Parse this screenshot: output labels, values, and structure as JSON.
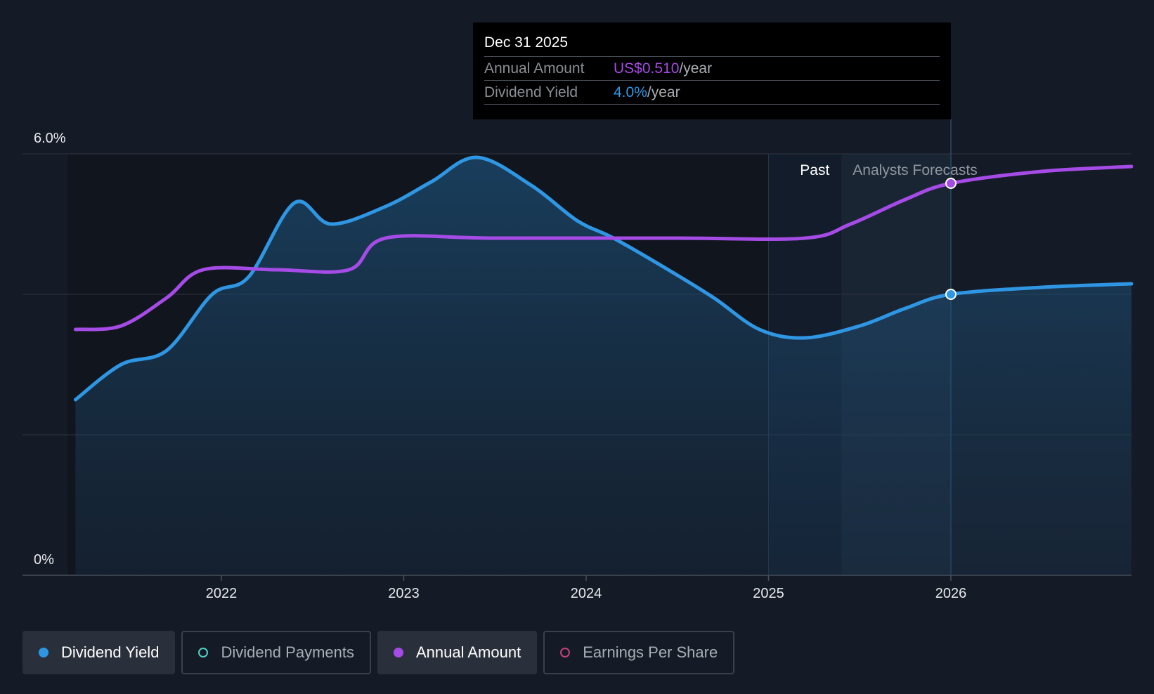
{
  "chart_data": {
    "type": "line",
    "x_axis": {
      "ticks": [
        "2022",
        "2023",
        "2024",
        "2025",
        "2026"
      ],
      "range": [
        2021.0,
        2027.0
      ]
    },
    "y_axis": {
      "tick_labels": [
        "6.0%",
        "0%"
      ],
      "range": [
        0,
        6
      ],
      "grid": true,
      "gridlines": [
        0,
        2,
        4,
        6
      ]
    },
    "regions": {
      "past_label": "Past",
      "forecast_label": "Analysts Forecasts",
      "forecast_start": 2025.4,
      "highlight_end": 2026.0
    },
    "series": [
      {
        "name": "Dividend Yield",
        "color": "#2f96e3",
        "area": true,
        "y_unit": "%",
        "points": [
          [
            2021.2,
            2.5
          ],
          [
            2021.45,
            3.0
          ],
          [
            2021.7,
            3.2
          ],
          [
            2021.95,
            4.0
          ],
          [
            2022.15,
            4.25
          ],
          [
            2022.4,
            5.3
          ],
          [
            2022.6,
            5.0
          ],
          [
            2022.9,
            5.25
          ],
          [
            2023.15,
            5.6
          ],
          [
            2023.4,
            5.95
          ],
          [
            2023.7,
            5.55
          ],
          [
            2023.95,
            5.05
          ],
          [
            2024.15,
            4.8
          ],
          [
            2024.45,
            4.35
          ],
          [
            2024.7,
            3.95
          ],
          [
            2024.95,
            3.5
          ],
          [
            2025.2,
            3.38
          ],
          [
            2025.5,
            3.55
          ],
          [
            2025.75,
            3.8
          ],
          [
            2026.0,
            4.0
          ],
          [
            2026.5,
            4.1
          ],
          [
            2026.99,
            4.15
          ]
        ]
      },
      {
        "name": "Annual Amount",
        "color": "#a54be6",
        "area": false,
        "note_scale": "plotted on same chart; y position corresponds to yield scale",
        "points": [
          [
            2021.2,
            3.5
          ],
          [
            2021.45,
            3.55
          ],
          [
            2021.7,
            3.95
          ],
          [
            2021.9,
            4.35
          ],
          [
            2022.3,
            4.35
          ],
          [
            2022.7,
            4.35
          ],
          [
            2022.9,
            4.8
          ],
          [
            2023.5,
            4.8
          ],
          [
            2024.5,
            4.8
          ],
          [
            2025.2,
            4.8
          ],
          [
            2025.45,
            5.0
          ],
          [
            2025.75,
            5.35
          ],
          [
            2026.0,
            5.58
          ],
          [
            2026.5,
            5.75
          ],
          [
            2026.99,
            5.82
          ]
        ]
      }
    ],
    "highlight": {
      "x": 2026.0,
      "date": "Dec 31 2025"
    }
  },
  "tooltip": {
    "date": "Dec 31 2025",
    "rows": [
      {
        "label": "Annual Amount",
        "value": "US$0.510",
        "unit": "/year",
        "color": "#a54be6"
      },
      {
        "label": "Dividend Yield",
        "value": "4.0%",
        "unit": "/year",
        "color": "#2f96e3"
      }
    ]
  },
  "legend": [
    {
      "label": "Dividend Yield",
      "active": true,
      "dot_color": "#2f96e3",
      "filled": true
    },
    {
      "label": "Dividend Payments",
      "active": false,
      "dot_color": "#4fd1c5",
      "filled": false
    },
    {
      "label": "Annual Amount",
      "active": true,
      "dot_color": "#a54be6",
      "filled": true
    },
    {
      "label": "Earnings Per Share",
      "active": false,
      "dot_color": "#c2427a",
      "filled": false
    }
  ]
}
